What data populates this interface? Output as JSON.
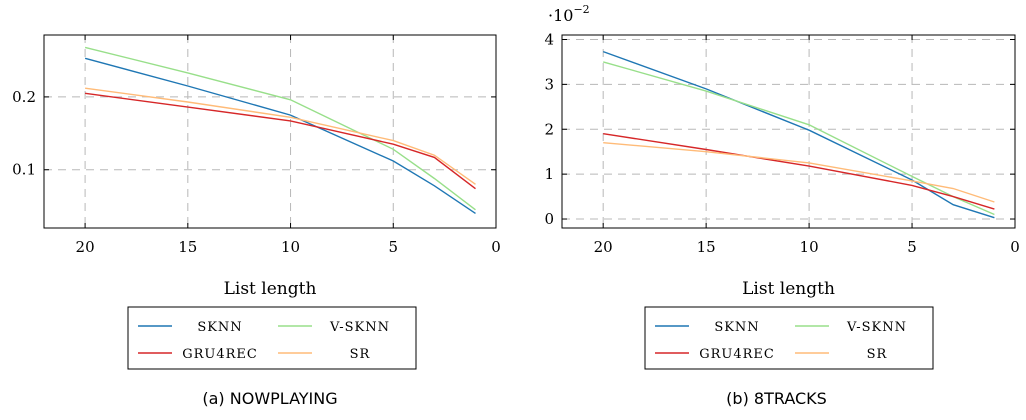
{
  "chart_data": [
    {
      "type": "line",
      "caption": "(a) NOWPLAYING",
      "xlabel": "List length",
      "ylabel": "",
      "xlim": [
        22,
        0
      ],
      "ylim": [
        0.02,
        0.285
      ],
      "x_ticks": [
        20,
        15,
        10,
        5,
        0
      ],
      "y_ticks": [
        0.1,
        0.2
      ],
      "y_tick_labels": [
        "0.1",
        "0.2"
      ],
      "grid": true,
      "legend_position": "below",
      "series": [
        {
          "name": "SKNN",
          "color": "#1f77b4",
          "x": [
            20,
            15,
            10,
            5,
            3,
            1
          ],
          "y": [
            0.253,
            0.215,
            0.175,
            0.112,
            0.078,
            0.04
          ]
        },
        {
          "name": "V-SKNN",
          "color": "#98df8a",
          "x": [
            20,
            15,
            10,
            5,
            3,
            1
          ],
          "y": [
            0.268,
            0.233,
            0.196,
            0.128,
            0.088,
            0.045
          ]
        },
        {
          "name": "GRU4REC",
          "color": "#d62728",
          "x": [
            20,
            15,
            10,
            5,
            3,
            1
          ],
          "y": [
            0.205,
            0.186,
            0.167,
            0.135,
            0.117,
            0.074
          ]
        },
        {
          "name": "SR",
          "color": "#ffbb78",
          "x": [
            20,
            15,
            10,
            5,
            3,
            1
          ],
          "y": [
            0.212,
            0.193,
            0.172,
            0.14,
            0.12,
            0.08
          ]
        }
      ]
    },
    {
      "type": "line",
      "caption": "(b) 8TRACKS",
      "xlabel": "List length",
      "ylabel": "",
      "xlim": [
        22,
        0
      ],
      "ylim": [
        -0.2,
        4.1
      ],
      "x_ticks": [
        20,
        15,
        10,
        5,
        0
      ],
      "y_ticks": [
        0,
        1,
        2,
        3,
        4
      ],
      "y_tick_labels": [
        "0",
        "1",
        "2",
        "3",
        "4"
      ],
      "y_scale_note": {
        "base": "·10",
        "exponent": "−2"
      },
      "grid": true,
      "legend_position": "below",
      "series": [
        {
          "name": "SKNN",
          "color": "#1f77b4",
          "x": [
            20,
            15,
            10,
            5,
            3,
            1
          ],
          "y": [
            3.73,
            2.9,
            1.98,
            0.87,
            0.32,
            0.03
          ]
        },
        {
          "name": "V-SKNN",
          "color": "#98df8a",
          "x": [
            20,
            15,
            10,
            5,
            3,
            1
          ],
          "y": [
            3.5,
            2.85,
            2.1,
            0.95,
            0.5,
            0.1
          ]
        },
        {
          "name": "GRU4REC",
          "color": "#d62728",
          "x": [
            20,
            15,
            10,
            5,
            3,
            1
          ],
          "y": [
            1.9,
            1.55,
            1.18,
            0.75,
            0.5,
            0.22
          ]
        },
        {
          "name": "SR",
          "color": "#ffbb78",
          "x": [
            20,
            15,
            10,
            5,
            3,
            1
          ],
          "y": [
            1.7,
            1.5,
            1.25,
            0.85,
            0.68,
            0.38
          ]
        }
      ]
    }
  ]
}
